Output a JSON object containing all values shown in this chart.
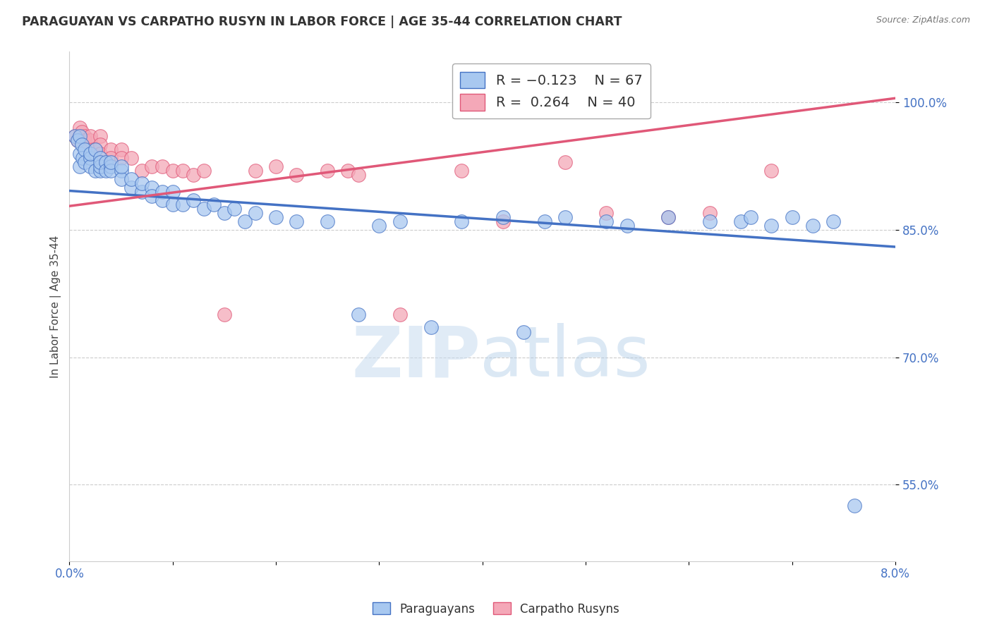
{
  "title": "PARAGUAYAN VS CARPATHO RUSYN IN LABOR FORCE | AGE 35-44 CORRELATION CHART",
  "source": "Source: ZipAtlas.com",
  "ylabel": "In Labor Force | Age 35-44",
  "legend_label_blue": "Paraguayans",
  "legend_label_pink": "Carpatho Rusyns",
  "blue_color": "#A8C8F0",
  "pink_color": "#F4A8B8",
  "blue_line_color": "#4472C4",
  "pink_line_color": "#E05878",
  "xmin": 0.0,
  "xmax": 0.08,
  "ymin": 0.46,
  "ymax": 1.06,
  "blue_line_x0": 0.0,
  "blue_line_y0": 0.896,
  "blue_line_x1": 0.08,
  "blue_line_y1": 0.83,
  "pink_line_x0": 0.0,
  "pink_line_y0": 0.878,
  "pink_line_x1": 0.08,
  "pink_line_y1": 1.005,
  "paraguayan_x": [
    0.0005,
    0.0008,
    0.001,
    0.001,
    0.001,
    0.0012,
    0.0013,
    0.0015,
    0.0015,
    0.002,
    0.002,
    0.002,
    0.0025,
    0.0025,
    0.003,
    0.003,
    0.003,
    0.003,
    0.0035,
    0.0035,
    0.004,
    0.004,
    0.004,
    0.005,
    0.005,
    0.005,
    0.006,
    0.006,
    0.007,
    0.007,
    0.008,
    0.008,
    0.009,
    0.009,
    0.01,
    0.01,
    0.011,
    0.012,
    0.013,
    0.014,
    0.015,
    0.016,
    0.017,
    0.018,
    0.02,
    0.022,
    0.025,
    0.028,
    0.03,
    0.032,
    0.035,
    0.038,
    0.042,
    0.044,
    0.046,
    0.048,
    0.052,
    0.054,
    0.058,
    0.062,
    0.065,
    0.066,
    0.068,
    0.07,
    0.072,
    0.074,
    0.076
  ],
  "paraguayan_y": [
    0.96,
    0.955,
    0.96,
    0.94,
    0.925,
    0.95,
    0.935,
    0.945,
    0.93,
    0.935,
    0.925,
    0.94,
    0.945,
    0.92,
    0.935,
    0.92,
    0.925,
    0.93,
    0.93,
    0.92,
    0.925,
    0.92,
    0.93,
    0.92,
    0.91,
    0.925,
    0.9,
    0.91,
    0.895,
    0.905,
    0.9,
    0.89,
    0.895,
    0.885,
    0.895,
    0.88,
    0.88,
    0.885,
    0.875,
    0.88,
    0.87,
    0.875,
    0.86,
    0.87,
    0.865,
    0.86,
    0.86,
    0.75,
    0.855,
    0.86,
    0.735,
    0.86,
    0.865,
    0.73,
    0.86,
    0.865,
    0.86,
    0.855,
    0.865,
    0.86,
    0.86,
    0.865,
    0.855,
    0.865,
    0.855,
    0.86,
    0.525
  ],
  "rusyn_x": [
    0.0005,
    0.0008,
    0.001,
    0.001,
    0.0012,
    0.0015,
    0.0015,
    0.002,
    0.002,
    0.0025,
    0.003,
    0.003,
    0.003,
    0.004,
    0.004,
    0.005,
    0.005,
    0.006,
    0.007,
    0.008,
    0.009,
    0.01,
    0.011,
    0.012,
    0.013,
    0.015,
    0.018,
    0.02,
    0.022,
    0.025,
    0.027,
    0.028,
    0.032,
    0.038,
    0.042,
    0.048,
    0.052,
    0.058,
    0.062,
    0.068
  ],
  "rusyn_y": [
    0.96,
    0.955,
    0.97,
    0.96,
    0.965,
    0.96,
    0.955,
    0.955,
    0.96,
    0.945,
    0.96,
    0.95,
    0.94,
    0.945,
    0.935,
    0.945,
    0.935,
    0.935,
    0.92,
    0.925,
    0.925,
    0.92,
    0.92,
    0.915,
    0.92,
    0.75,
    0.92,
    0.925,
    0.915,
    0.92,
    0.92,
    0.915,
    0.75,
    0.92,
    0.86,
    0.93,
    0.87,
    0.865,
    0.87,
    0.92
  ]
}
